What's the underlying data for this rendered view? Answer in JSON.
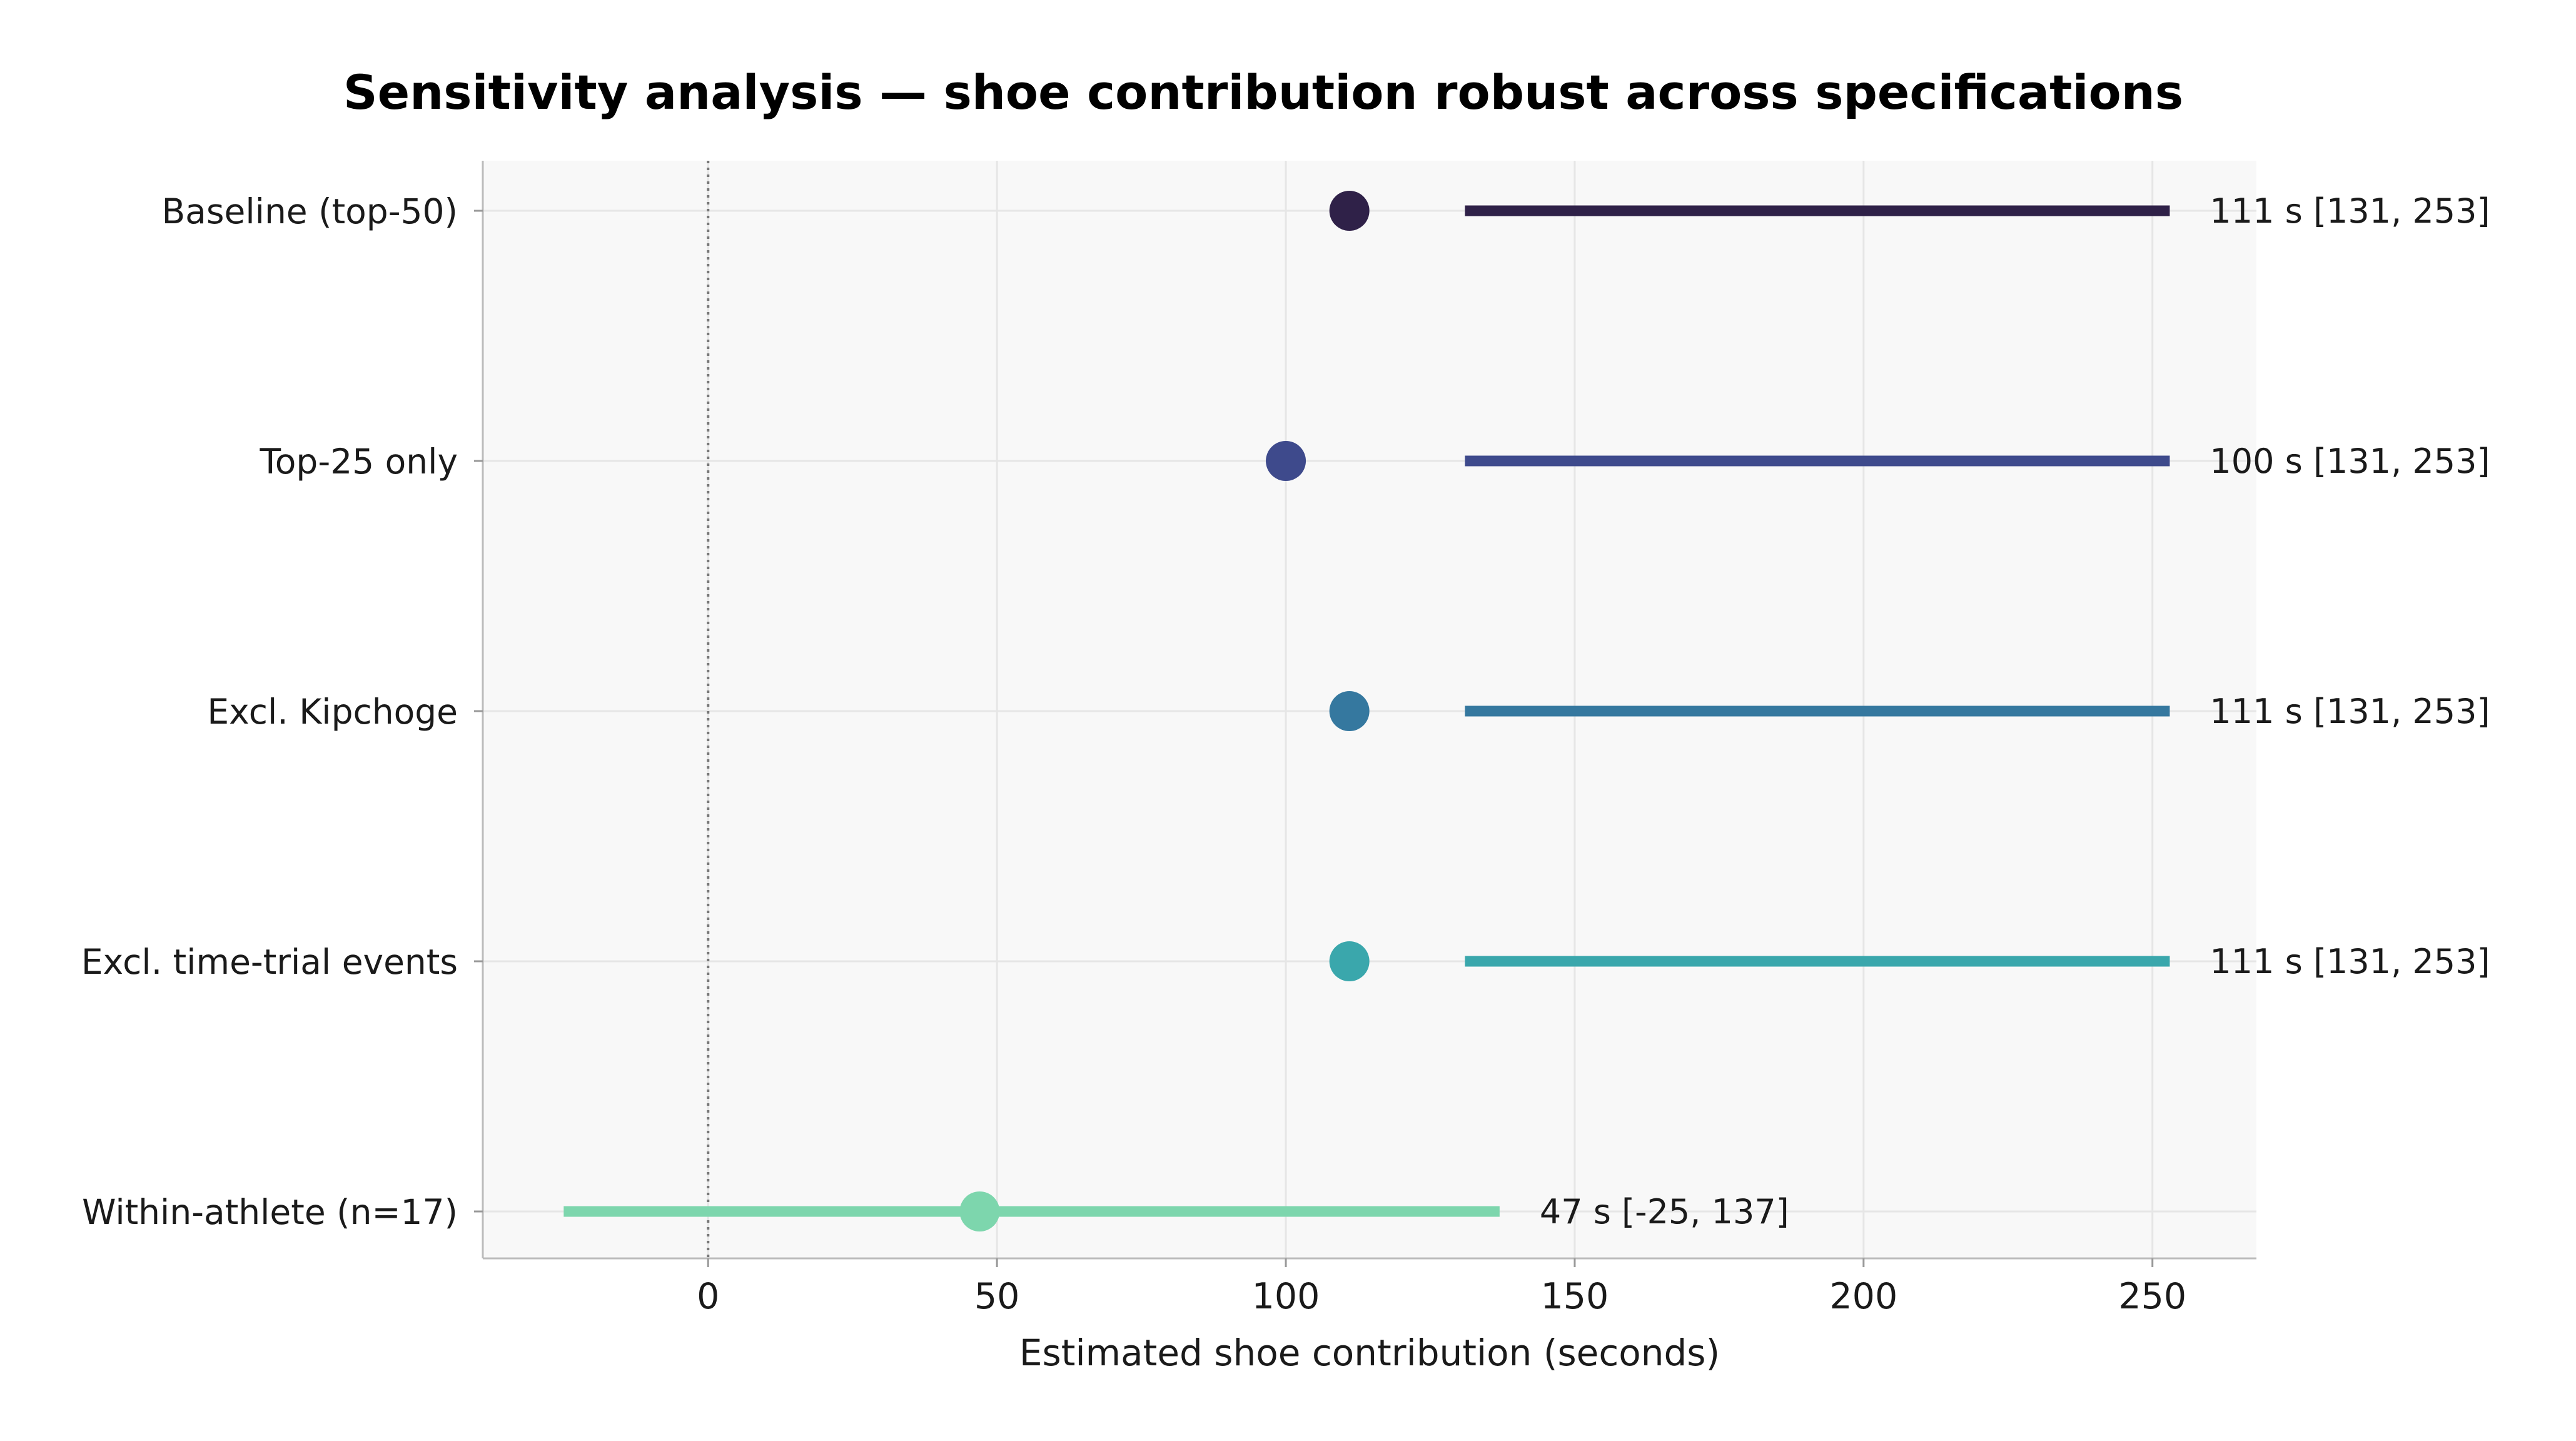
{
  "chart_data": {
    "type": "scatter",
    "title": "Sensitivity analysis — shoe contribution robust across specifications",
    "xlabel": "Estimated shoe contribution (seconds)",
    "ylabel": "",
    "xlim": [
      -39,
      268
    ],
    "xticks": [
      0,
      50,
      100,
      150,
      200,
      250
    ],
    "xtick_labels": [
      "0",
      "50",
      "100",
      "150",
      "200",
      "250"
    ],
    "reference_line_x": 0,
    "grid": true,
    "rows": [
      {
        "label": "Baseline (top-50)",
        "estimate": 111,
        "ci_low": 131,
        "ci_high": 253,
        "annotation": "111 s  [131, 253]",
        "color": "#2f2148"
      },
      {
        "label": "Top-25 only",
        "estimate": 100,
        "ci_low": 131,
        "ci_high": 253,
        "annotation": "100 s  [131, 253]",
        "color": "#3e4a8c"
      },
      {
        "label": "Excl. Kipchoge",
        "estimate": 111,
        "ci_low": 131,
        "ci_high": 253,
        "annotation": "111 s  [131, 253]",
        "color": "#35789f"
      },
      {
        "label": "Excl. time-trial events",
        "estimate": 111,
        "ci_low": 131,
        "ci_high": 253,
        "annotation": "111 s  [131, 253]",
        "color": "#3aa7ac"
      },
      {
        "label": "Within-athlete (n=17)",
        "estimate": 47,
        "ci_low": -25,
        "ci_high": 137,
        "annotation": "47 s  [-25, 137]",
        "color": "#7dd6ad"
      }
    ]
  }
}
